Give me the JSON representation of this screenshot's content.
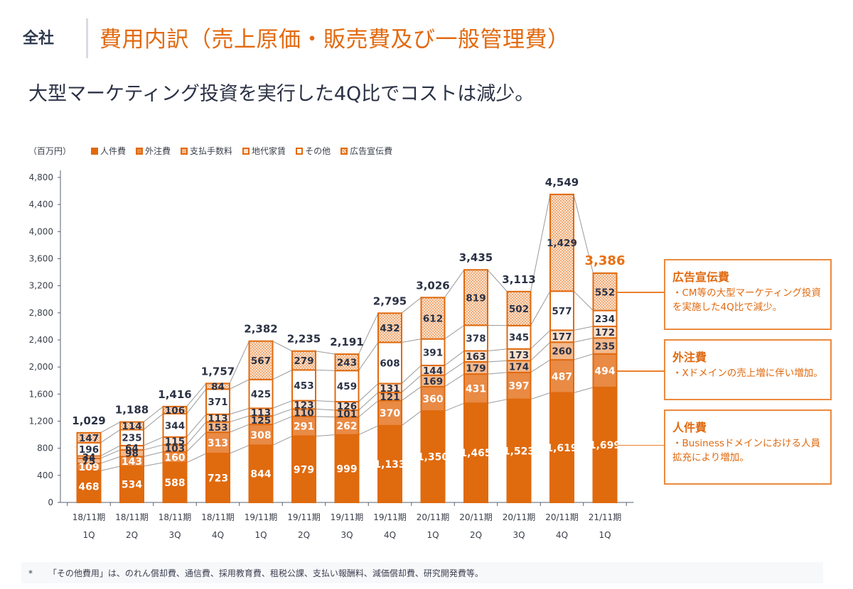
{
  "header": {
    "scope": "全社",
    "title": "費用内訳（売上原価・販売費及び一般管理費）",
    "subtitle": "大型マーケティング投資を実行した4Q比でコストは減少。"
  },
  "colors": {
    "personnel": "#e06a0e",
    "outsourcing": "#e98a45",
    "fees": "#f3b98e",
    "rent": "#fbe0cc",
    "other": "#ffffff",
    "advertising": "#f7cda8",
    "border": "#e06a0e",
    "accent_total": "#e86f12",
    "text_dark": "#2b3245",
    "connector": "#9a9a9a"
  },
  "chart_data": {
    "type": "bar",
    "stacked": true,
    "unit_label": "（百万円）",
    "title": "",
    "xlabel": "",
    "ylabel": "",
    "ylim": [
      0,
      4800
    ],
    "yticks": [
      0,
      400,
      800,
      1200,
      1600,
      2000,
      2400,
      2800,
      3200,
      3600,
      4000,
      4400,
      4800
    ],
    "ytick_labels": [
      "0",
      "400",
      "800",
      "1,200",
      "1,600",
      "2,000",
      "2,400",
      "2,800",
      "3,200",
      "3,600",
      "4,000",
      "4,400",
      "4,800"
    ],
    "categories": [
      [
        "18/11期",
        "1Q"
      ],
      [
        "18/11期",
        "2Q"
      ],
      [
        "18/11期",
        "3Q"
      ],
      [
        "18/11期",
        "4Q"
      ],
      [
        "19/11期",
        "1Q"
      ],
      [
        "19/11期",
        "2Q"
      ],
      [
        "19/11期",
        "3Q"
      ],
      [
        "19/11期",
        "4Q"
      ],
      [
        "20/11期",
        "1Q"
      ],
      [
        "20/11期",
        "2Q"
      ],
      [
        "20/11期",
        "3Q"
      ],
      [
        "20/11期",
        "4Q"
      ],
      [
        "21/11期",
        "1Q"
      ]
    ],
    "series": [
      {
        "key": "personnel",
        "name": "人件費",
        "values": [
          468,
          534,
          588,
          723,
          844,
          979,
          999,
          1133,
          1350,
          1465,
          1523,
          1619,
          1699
        ],
        "labels": [
          "468",
          "534",
          "588",
          "723",
          "844",
          "979",
          "999",
          "1,133",
          "1,350",
          "1,465",
          "1,523",
          "1,619",
          "1,699"
        ]
      },
      {
        "key": "outsourcing",
        "name": "外注費",
        "values": [
          109,
          143,
          160,
          313,
          308,
          291,
          262,
          370,
          360,
          431,
          397,
          487,
          494
        ],
        "labels": [
          "109",
          "143",
          "160",
          "313",
          "308",
          "291",
          "262",
          "370",
          "360",
          "431",
          "397",
          "487",
          "494"
        ]
      },
      {
        "key": "fees",
        "name": "支払手数料",
        "values": [
          75,
          98,
          103,
          153,
          125,
          110,
          101,
          121,
          169,
          179,
          174,
          260,
          235
        ],
        "labels": [
          "75",
          "98",
          "103",
          "153",
          "125",
          "110",
          "101",
          "121",
          "169",
          "179",
          "174",
          "260",
          "235"
        ]
      },
      {
        "key": "rent",
        "name": "地代家賃",
        "values": [
          34,
          64,
          115,
          113,
          113,
          123,
          126,
          131,
          144,
          163,
          173,
          177,
          172
        ],
        "labels": [
          "34",
          "64",
          "115",
          "113",
          "113",
          "123",
          "126",
          "131",
          "144",
          "163",
          "173",
          "177",
          "172"
        ]
      },
      {
        "key": "other",
        "name": "その他",
        "values": [
          196,
          235,
          344,
          371,
          425,
          453,
          459,
          608,
          391,
          378,
          345,
          577,
          234
        ],
        "labels": [
          "196",
          "235",
          "344",
          "371",
          "425",
          "453",
          "459",
          "608",
          "391",
          "378",
          "345",
          "577",
          "234"
        ]
      },
      {
        "key": "advertising",
        "name": "広告宣伝費",
        "values": [
          147,
          114,
          106,
          84,
          567,
          279,
          243,
          432,
          612,
          819,
          502,
          1429,
          552
        ],
        "labels": [
          "147",
          "114",
          "106",
          "84",
          "567",
          "279",
          "243",
          "432",
          "612",
          "819",
          "502",
          "1,429",
          "552"
        ]
      }
    ],
    "totals": [
      1029,
      1188,
      1416,
      1757,
      2382,
      2235,
      2191,
      2795,
      3026,
      3435,
      3113,
      4549,
      3386
    ],
    "total_labels": [
      "1,029",
      "1,188",
      "1,416",
      "1,757",
      "2,382",
      "2,235",
      "2,191",
      "2,795",
      "3,026",
      "3,435",
      "3,113",
      "4,549",
      "3,386"
    ],
    "highlight_last_total": true,
    "legend_position": "top",
    "grid": false
  },
  "legend": [
    {
      "key": "personnel",
      "label": "人件費"
    },
    {
      "key": "outsourcing",
      "label": "外注費"
    },
    {
      "key": "fees",
      "label": "支払手数料"
    },
    {
      "key": "rent",
      "label": "地代家賃"
    },
    {
      "key": "other",
      "label": "その他"
    },
    {
      "key": "advertising",
      "label": "広告宣伝費"
    }
  ],
  "callouts": [
    {
      "series": "advertising",
      "title": "広告宣伝費",
      "body": "・CM等の大型マーケティング投資を実施した4Q比で減少。"
    },
    {
      "series": "outsourcing",
      "title": "外注費",
      "body": "・Xドメインの売上増に伴い増加。"
    },
    {
      "series": "personnel",
      "title": "人件費",
      "body": "・Businessドメインにおける人員拡充により増加。"
    }
  ],
  "footnote": {
    "marker": "*",
    "text": "「その他費用」は、のれん償却費、通信費、採用教育費、租税公課、支払い報酬料、減価償却費、研究開発費等。"
  }
}
